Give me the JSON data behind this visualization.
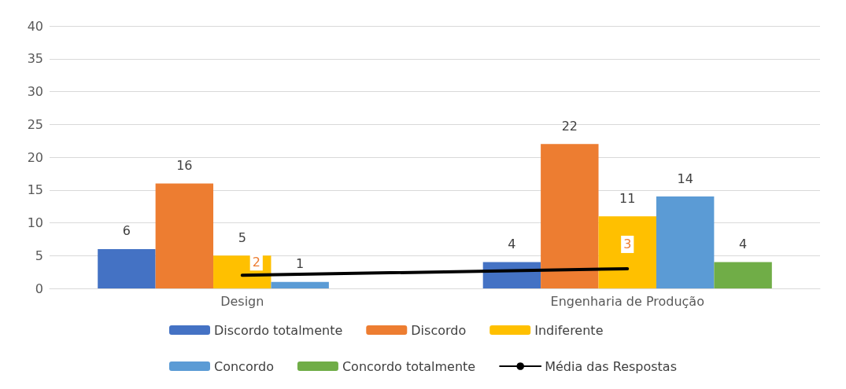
{
  "chart_data": {
    "type": "bar",
    "categories": [
      "Design",
      "Engenharia de Produção"
    ],
    "series": [
      {
        "name": "Discordo totalmente",
        "color": "#4472c4",
        "values": [
          6,
          4
        ],
        "value_labels": [
          "6",
          "4"
        ]
      },
      {
        "name": "Discordo",
        "color": "#ed7d31",
        "values": [
          16,
          22
        ],
        "value_labels": [
          "16",
          "22"
        ]
      },
      {
        "name": "Indiferente",
        "color": "#ffc000",
        "values": [
          5,
          11
        ],
        "value_labels": [
          "5",
          "11"
        ]
      },
      {
        "name": "Concordo",
        "color": "#5b9bd5",
        "values": [
          1,
          14
        ],
        "value_labels": [
          "1",
          "14"
        ]
      },
      {
        "name": "Concordo totalmente",
        "color": "#70ad47",
        "values": [
          null,
          4
        ],
        "value_labels": [
          null,
          "4"
        ]
      },
      {
        "name": "Média das Respostas",
        "type": "line",
        "color": "#000000",
        "values": [
          2,
          3
        ],
        "value_labels": [
          "2",
          "3"
        ]
      }
    ],
    "ylim": [
      0,
      40
    ],
    "yticks": [
      0,
      5,
      10,
      15,
      20,
      25,
      30,
      35,
      40
    ],
    "grid": "y",
    "legend": "bottom",
    "marker": "none",
    "line_style": "solid"
  }
}
